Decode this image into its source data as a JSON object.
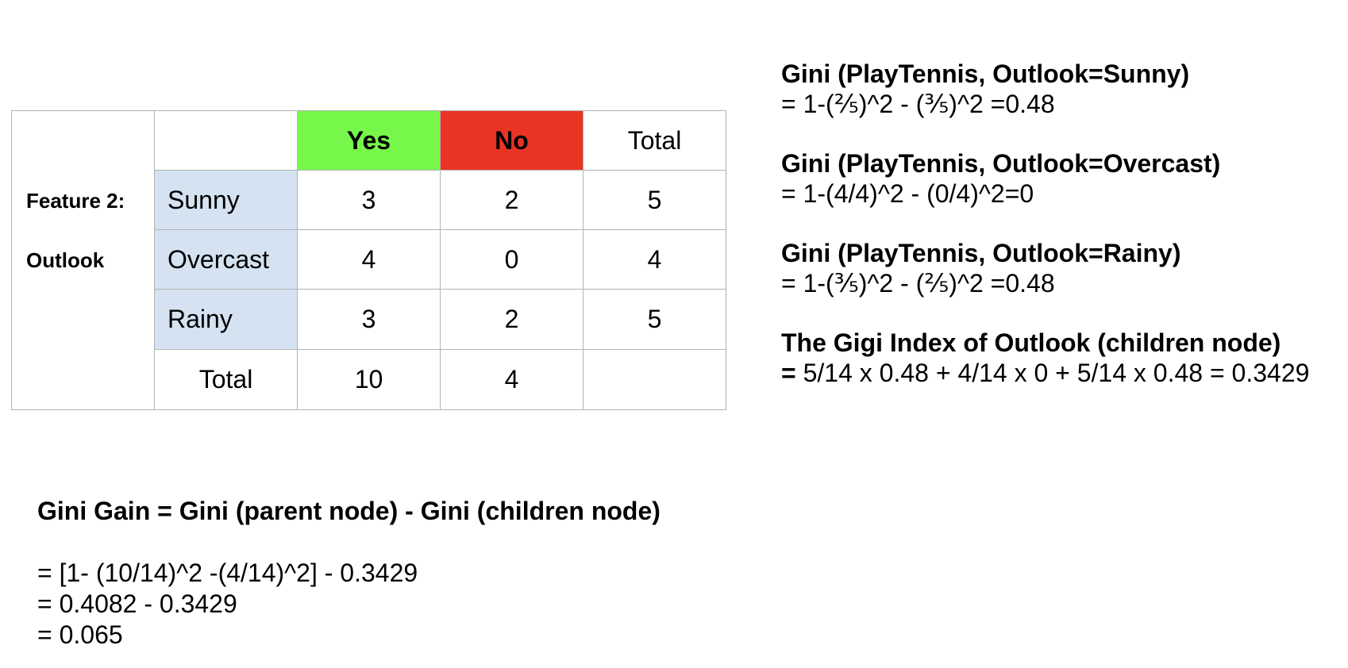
{
  "colors": {
    "yes_header": "#77f74a",
    "no_header": "#e93424",
    "category_cell": "#d4e2f1",
    "border": "#b3b3b3"
  },
  "table": {
    "feature_line1": "Feature 2:",
    "feature_line2": "Outlook",
    "header_yes": "Yes",
    "header_no": "No",
    "header_total": "Total",
    "rows": [
      {
        "label": "Sunny",
        "yes": "3",
        "no": "2",
        "total": "5"
      },
      {
        "label": "Overcast",
        "yes": "4",
        "no": "0",
        "total": "4"
      },
      {
        "label": "Rainy",
        "yes": "3",
        "no": "2",
        "total": "5"
      }
    ],
    "total_label": "Total",
    "total_yes": "10",
    "total_no": "4",
    "total_total": ""
  },
  "formulas": {
    "sunny_title": "Gini (PlayTennis, Outlook=Sunny)",
    "sunny_value": "= 1-(⅖)^2 - (⅗)^2 =0.48",
    "overcast_title": "Gini (PlayTennis, Outlook=Overcast)",
    "overcast_value": "= 1-(4/4)^2 - (0/4)^2=0",
    "rainy_title": "Gini (PlayTennis, Outlook=Rainy)",
    "rainy_value": "= 1-(⅗)^2 - (⅖)^2 =0.48",
    "index_title": "The Gigi Index of Outlook (children node)",
    "index_eq": "=",
    "index_value": " 5/14 x 0.48 + 4/14 x 0 + 5/14 x 0.48 = 0.3429"
  },
  "gain": {
    "title": "Gini Gain = Gini (parent node) - Gini (children node)",
    "line1": "= [1- (10/14)^2 -(4/14)^2] - 0.3429",
    "line2": "= 0.4082 - 0.3429",
    "line3": "= 0.065"
  }
}
